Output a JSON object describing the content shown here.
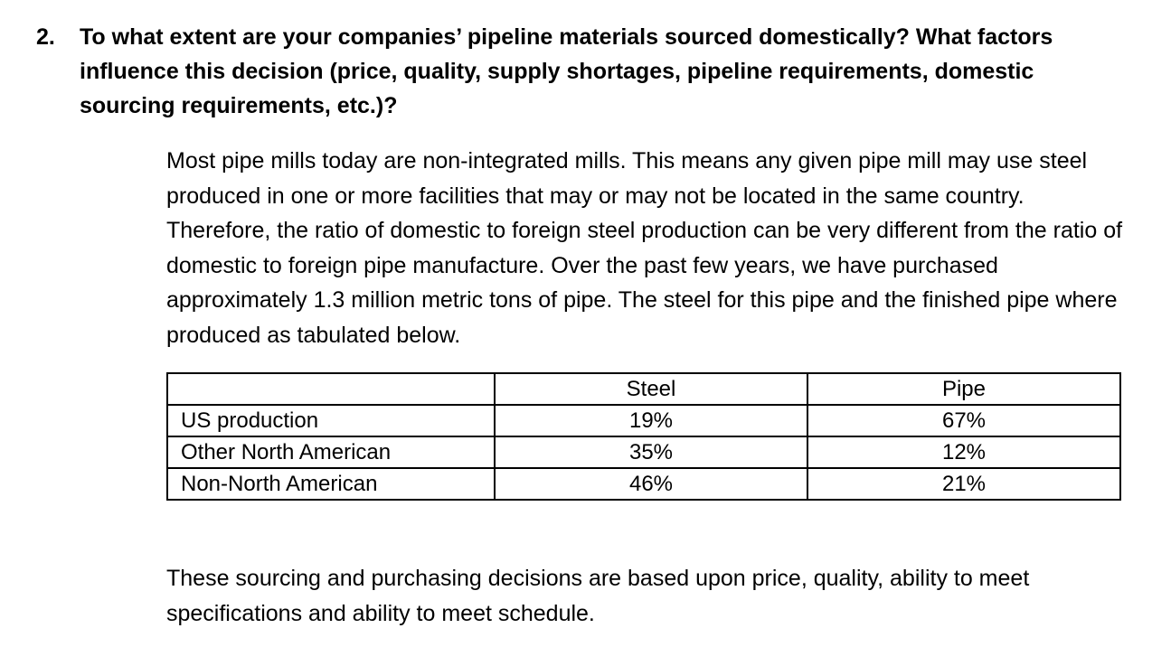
{
  "question": {
    "number": "2.",
    "text": "To what extent are your companies’ pipeline materials sourced domestically? What factors influence this decision (price, quality, supply shortages, pipeline requirements, domestic sourcing requirements, etc.)?"
  },
  "paragraph_1": "Most pipe mills today are non-integrated mills.  This means any given pipe mill may use steel produced in one or more facilities that may or may not be located in the same country.  Therefore, the ratio of domestic to foreign steel production can be very different from the ratio of domestic to foreign pipe manufacture.  Over the past few years, we have purchased approximately 1.3 million metric tons of pipe.  The steel for this pipe and the finished pipe where produced as tabulated below.",
  "table": {
    "headers": [
      "",
      "Steel",
      "Pipe"
    ],
    "rows": [
      [
        "US production",
        "19%",
        "67%"
      ],
      [
        "Other North American",
        "35%",
        "12%"
      ],
      [
        "Non-North American",
        "46%",
        "21%"
      ]
    ]
  },
  "paragraph_2": "These sourcing and purchasing decisions are based upon price, quality, ability to meet specifications and ability to meet schedule."
}
